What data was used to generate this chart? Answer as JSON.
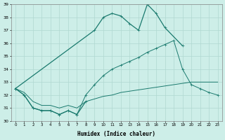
{
  "xlabel": "Humidex (Indice chaleur)",
  "x_values": [
    0,
    1,
    2,
    3,
    4,
    5,
    6,
    7,
    8,
    9,
    10,
    11,
    12,
    13,
    14,
    15,
    16,
    17,
    18,
    19,
    20,
    21,
    22,
    23
  ],
  "line_peak": [
    32.5,
    null,
    null,
    null,
    null,
    null,
    null,
    null,
    null,
    37.0,
    38.0,
    38.3,
    38.1,
    37.5,
    37.0,
    39.0,
    38.3,
    37.2,
    null,
    35.8,
    null,
    null,
    null,
    null
  ],
  "line_jagged": [
    32.5,
    32.0,
    31.0,
    30.8,
    30.8,
    30.5,
    30.8,
    30.5,
    31.5,
    null,
    null,
    null,
    null,
    null,
    null,
    null,
    null,
    null,
    null,
    null,
    null,
    null,
    null,
    null
  ],
  "line_mid": [
    32.5,
    32.0,
    31.0,
    30.8,
    30.8,
    30.5,
    30.8,
    30.5,
    32.0,
    32.8,
    33.5,
    34.0,
    34.3,
    34.6,
    34.9,
    35.3,
    35.6,
    35.9,
    36.2,
    34.0,
    32.8,
    32.5,
    32.2,
    32.0
  ],
  "line_base": [
    32.5,
    32.2,
    31.5,
    31.2,
    31.2,
    31.0,
    31.2,
    31.0,
    31.5,
    31.7,
    31.9,
    32.0,
    32.2,
    32.3,
    32.4,
    32.5,
    32.6,
    32.7,
    32.8,
    32.9,
    33.0,
    33.0,
    33.0,
    33.0
  ],
  "ylim": [
    30,
    39
  ],
  "xlim": [
    -0.5,
    23.5
  ],
  "yticks": [
    30,
    31,
    32,
    33,
    34,
    35,
    36,
    37,
    38,
    39
  ],
  "xticks": [
    0,
    1,
    2,
    3,
    4,
    5,
    6,
    7,
    8,
    9,
    10,
    11,
    12,
    13,
    14,
    15,
    16,
    17,
    18,
    19,
    20,
    21,
    22,
    23
  ],
  "line_color": "#1a7a6e",
  "bg_color": "#cdeee8",
  "grid_color": "#b0d8d0"
}
